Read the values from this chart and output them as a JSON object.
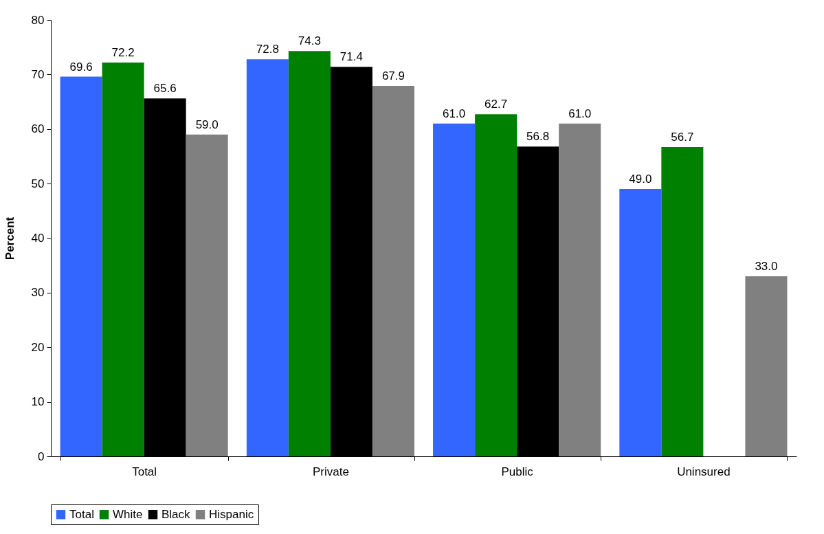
{
  "chart_data": {
    "type": "bar",
    "ylabel": "Percent",
    "categories": [
      "Total",
      "Private",
      "Public",
      "Uninsured"
    ],
    "series": [
      {
        "name": "Total",
        "color": "#3366ff",
        "values": [
          69.6,
          72.8,
          61.0,
          49.0
        ],
        "value_labels": [
          "69.6",
          "72.8",
          "61.0",
          "49.0"
        ]
      },
      {
        "name": "White",
        "color": "#008000",
        "values": [
          72.2,
          74.3,
          62.7,
          56.7
        ],
        "value_labels": [
          "72.2",
          "74.3",
          "62.7",
          "56.7"
        ]
      },
      {
        "name": "Black",
        "color": "#000000",
        "values": [
          65.6,
          71.4,
          56.8,
          null
        ],
        "value_labels": [
          "65.6",
          "71.4",
          "56.8",
          null
        ]
      },
      {
        "name": "Hispanic",
        "color": "#808080",
        "values": [
          59.0,
          67.9,
          61.0,
          33.0
        ],
        "value_labels": [
          "59.0",
          "67.9",
          "61.0",
          "33.0"
        ]
      }
    ],
    "ylim": [
      0,
      80
    ],
    "yticks": [
      0,
      10,
      20,
      30,
      40,
      50,
      60,
      70,
      80
    ],
    "grid": false,
    "legend": "bottom"
  }
}
